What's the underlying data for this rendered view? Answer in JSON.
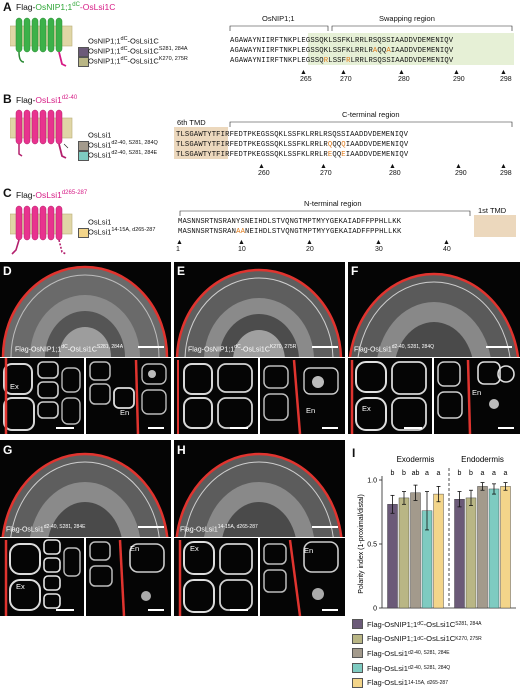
{
  "panelA": {
    "label": "A",
    "construct_prefix": "Flag-",
    "construct_part1": "OsNIP1;1",
    "construct_part1_sup": "dC",
    "construct_dash": "-",
    "construct_part2": "OsLsi1C",
    "header_left": "OsNIP1;1",
    "header_right": "Swapping region",
    "rows": [
      {
        "name": "OsNIP1;1",
        "sup": "dC",
        "name2": "-OsLsi1C",
        "sup2": "",
        "seq_a": "AGAWAYNIIRFTNKPL",
        "seq_b": "EGSSQKLSSFKLRRLRSQSSIAADDVDEMENIQV"
      },
      {
        "name": "OsNIP1;1",
        "sup": "dC",
        "name2": "-OsLsi1C",
        "sup2": "S281, 284A",
        "seq_a": "AGAWAYNIIRFTNKPL",
        "seq_b": "EGSSQKLSSFKLRRLRAQQA",
        "seq_c": "IAADDVDEMENIQV"
      },
      {
        "name": "OsNIP1;1",
        "sup": "dC",
        "name2": "-OsLsi1C",
        "sup2": "K270, 275R",
        "seq_a": "AGAWAYNIIRFTNKPL",
        "seq_b": "EGSSQRLSSFRLRRLRSQSSIAADDVDEMENIQV"
      }
    ],
    "ticks": [
      "265",
      "270",
      "280",
      "290",
      "298"
    ]
  },
  "panelB": {
    "label": "B",
    "construct_prefix": "Flag-",
    "construct_name": "OsLsi1",
    "construct_sup": "d2-40",
    "header_tmd": "6th TMD",
    "header_region": "C-terminal region",
    "rows": [
      {
        "name": "OsLsi1",
        "sup": "",
        "seq_a": "TLSGAWTYTF",
        "seq_b": "IRFEDTPKEGSSQKLSSFKLRRLRSQSSIAADDVDEMENIQV"
      },
      {
        "name": "OsLsi1",
        "sup": "d2-40, S281, 284Q",
        "seq_a": "TLSGAWTYTF",
        "seq_b": "IRFEDTPKEGSSQKLSSFKLRRLRQQQQIAADDVDEMENIQV"
      },
      {
        "name": "OsLsi1",
        "sup": "d2-40, S281, 284E",
        "seq_a": "TLSGAWTYTF",
        "seq_b": "IRFEDTPKEGSSQKLSSFKLRRLREQQEIAADDVDEMENIQV"
      }
    ],
    "ticks": [
      "260",
      "270",
      "280",
      "290",
      "298"
    ]
  },
  "panelC": {
    "label": "C",
    "construct_prefix": "Flag-",
    "construct_name": "OsLsi1",
    "construct_sup": "d265-287",
    "header_region": "N-terminal region",
    "header_tmd": "1st TMD",
    "rows": [
      {
        "name": "OsLsi1",
        "sup": "",
        "seq": "MASNNSRTNSRANYSNEIHDLSTVQNGTMPTMYYGEKAIADFFP",
        "tmd": "PHLLKK"
      },
      {
        "name": "OsLsi1",
        "sup": "14-15A, d265-287",
        "seq": "MASNNSRTNSRANAANEIHDLSTVQNGTMPTMYYGEKAIADFFP",
        "tmd": "PHLLKK"
      }
    ],
    "ticks": [
      "1",
      "10",
      "20",
      "30",
      "40"
    ]
  },
  "panelD": {
    "label": "D",
    "caption": "Flag-OsNIP1;1",
    "sup1": "dC",
    "caption2": "-OsLsi1C",
    "sup2": "S281, 284A",
    "ex": "Ex",
    "en": "En"
  },
  "panelE": {
    "label": "E",
    "caption": "Flag-OsNIP1;1",
    "sup1": "dC",
    "caption2": "-OsLsi1C",
    "sup2": "K270, 275R",
    "en": "En"
  },
  "panelF": {
    "label": "F",
    "caption": "Flag-OsLsi1",
    "sup1": "d2-40, S281, 284Q",
    "ex": "Ex",
    "en": "En"
  },
  "panelG": {
    "label": "G",
    "caption": "Flag-OsLsi1",
    "sup1": "d2-40, S281, 284E",
    "ex": "Ex",
    "en": "En"
  },
  "panelH": {
    "label": "H",
    "caption": "Flag-OsLsi1",
    "sup1": "14-15A, d265-287",
    "ex": "Ex",
    "en": "En"
  },
  "chart_data": {
    "type": "bar",
    "label": "I",
    "ylabel": "Polarity index (1-proximal/distal)",
    "groups": [
      "Exodermis",
      "Endodermis"
    ],
    "ylim": [
      0,
      1.0
    ],
    "yticks": [
      "0",
      "0.5",
      "1.0"
    ],
    "series": [
      {
        "name": "Flag-OsNIP1;1dC-OsLsi1CS281, 284A",
        "color": "#6b5a78",
        "values": [
          0.81,
          0.85
        ],
        "errors": [
          0.07,
          0.06
        ],
        "letters": [
          "b",
          "b"
        ]
      },
      {
        "name": "Flag-OsNIP1;1dC-OsLsi1CK270, 275R",
        "color": "#b9b685",
        "values": [
          0.86,
          0.86
        ],
        "errors": [
          0.05,
          0.06
        ],
        "letters": [
          "b",
          "b"
        ]
      },
      {
        "name": "Flag-OsLsi1d2-40, S281, 284E",
        "color": "#a39a8c",
        "values": [
          0.9,
          0.95
        ],
        "errors": [
          0.06,
          0.03
        ],
        "letters": [
          "ab",
          "a"
        ]
      },
      {
        "name": "Flag-OsLsi1d2-40, S281, 284Q",
        "color": "#7ecbc1",
        "values": [
          0.76,
          0.93
        ],
        "errors": [
          0.15,
          0.04
        ],
        "letters": [
          "a",
          "a"
        ]
      },
      {
        "name": "Flag-OsLsi114-15A, d265-287",
        "color": "#f3d58a",
        "values": [
          0.89,
          0.95
        ],
        "errors": [
          0.06,
          0.03
        ],
        "letters": [
          "a",
          "a"
        ]
      }
    ],
    "legend": [
      {
        "name": "Flag-OsNIP1;1",
        "sup1": "dC",
        "mid": "-OsLsi1C",
        "sup2": "S281, 284A",
        "color": "#6b5a78"
      },
      {
        "name": "Flag-OsNIP1;1",
        "sup1": "dC",
        "mid": "-OsLsi1C",
        "sup2": "K270, 275R",
        "color": "#b9b685"
      },
      {
        "name": "Flag-OsLsi1",
        "sup1": "d2-40, S281, 284E",
        "mid": "",
        "sup2": "",
        "color": "#a39a8c"
      },
      {
        "name": "Flag-OsLsi1",
        "sup1": "d2-40, S281, 284Q",
        "mid": "",
        "sup2": "",
        "color": "#7ecbc1"
      },
      {
        "name": "Flag-OsLsi1",
        "sup1": "14-15A, d265-287",
        "mid": "",
        "sup2": "",
        "color": "#f3d58a"
      }
    ]
  }
}
